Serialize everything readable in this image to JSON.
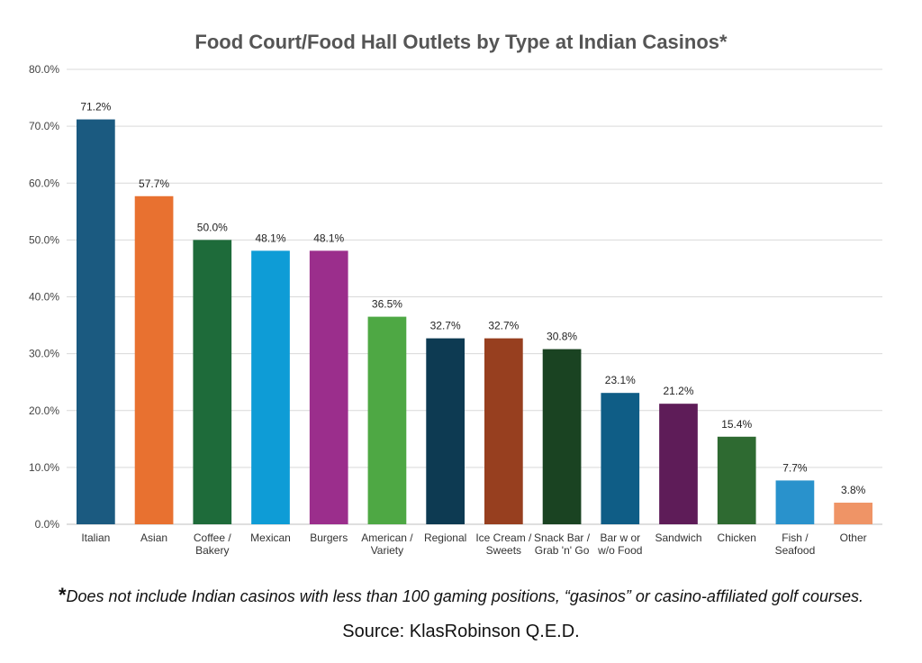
{
  "chart_data": {
    "type": "bar",
    "title": "Food Court/Food Hall Outlets by Type at Indian Casinos*",
    "xlabel": "",
    "ylabel": "",
    "ylim": [
      0,
      80
    ],
    "y_ticks": [
      "0.0%",
      "10.0%",
      "20.0%",
      "30.0%",
      "40.0%",
      "50.0%",
      "60.0%",
      "70.0%",
      "80.0%"
    ],
    "grid": true,
    "legend": "none",
    "categories": [
      [
        "Italian"
      ],
      [
        "Asian"
      ],
      [
        "Coffee /",
        "Bakery"
      ],
      [
        "Mexican"
      ],
      [
        "Burgers"
      ],
      [
        "American /",
        "Variety"
      ],
      [
        "Regional"
      ],
      [
        "Ice Cream /",
        "Sweets"
      ],
      [
        "Snack Bar /",
        "Grab 'n' Go"
      ],
      [
        "Bar w or",
        "w/o Food"
      ],
      [
        "Sandwich"
      ],
      [
        "Chicken"
      ],
      [
        "Fish /",
        "Seafood"
      ],
      [
        "Other"
      ]
    ],
    "values": [
      71.2,
      57.7,
      50.0,
      48.1,
      48.1,
      36.5,
      32.7,
      32.7,
      30.8,
      23.1,
      21.2,
      15.4,
      7.7,
      3.8
    ],
    "data_labels": [
      "71.2%",
      "57.7%",
      "50.0%",
      "48.1%",
      "48.1%",
      "36.5%",
      "32.7%",
      "32.7%",
      "30.8%",
      "23.1%",
      "21.2%",
      "15.4%",
      "7.7%",
      "3.8%"
    ],
    "colors": [
      "#1b5a80",
      "#e87130",
      "#1e6b3a",
      "#0e9cd6",
      "#9b2e8c",
      "#4ea844",
      "#0d3a52",
      "#973f1f",
      "#1a4322",
      "#0f5d86",
      "#5e1c58",
      "#2e6a31",
      "#2992cc",
      "#ef9466"
    ]
  },
  "footnote": {
    "marker": "*",
    "text": "Does not include Indian casinos with less than 100 gaming positions, “gasinos” or casino-affiliated golf courses."
  },
  "source": "Source: KlasRobinson Q.E.D."
}
